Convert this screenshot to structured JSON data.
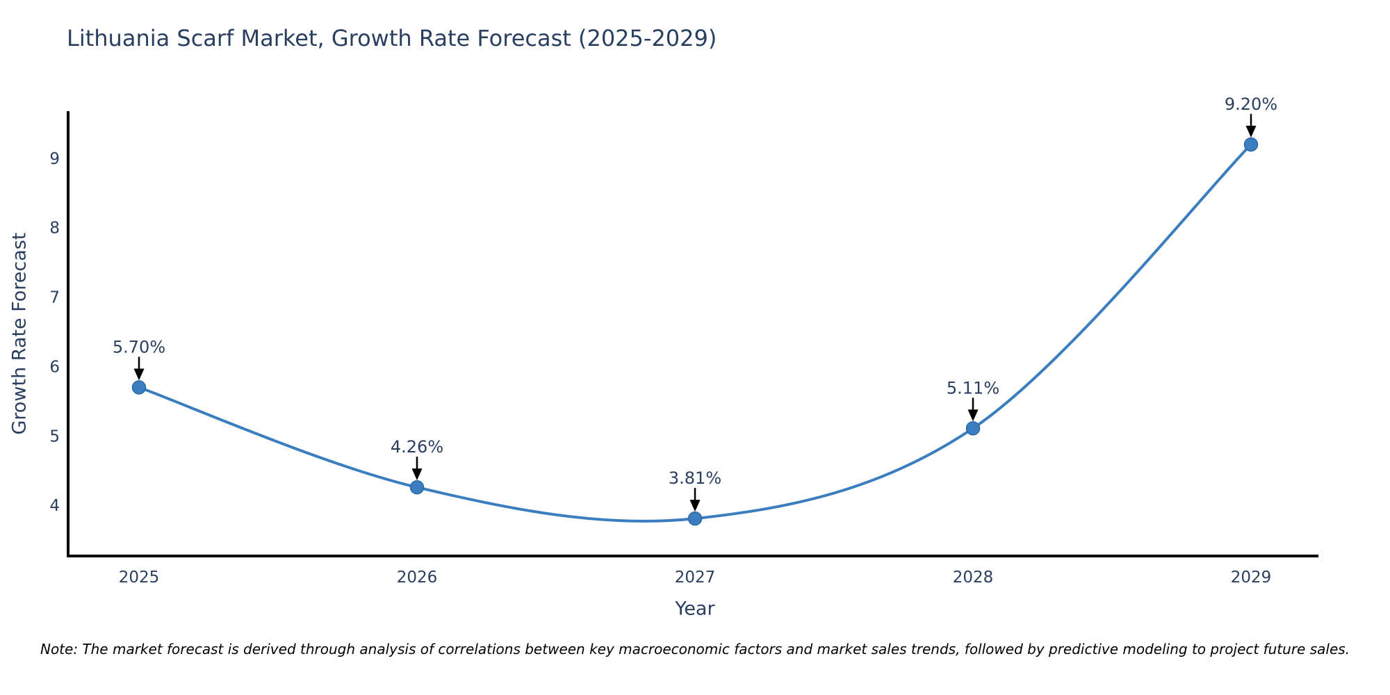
{
  "page": {
    "note": "Note: The market forecast is derived through analysis of correlations between key macroeconomic factors and market sales trends, followed by predictive modeling to project future sales."
  },
  "chart_data": {
    "type": "line",
    "title": "Lithuania Scarf Market, Growth Rate Forecast (2025-2029)",
    "xlabel": "Year",
    "ylabel": "Growth Rate Forecast",
    "categories": [
      "2025",
      "2026",
      "2027",
      "2028",
      "2029"
    ],
    "series": [
      {
        "name": "Growth Rate Forecast",
        "values": [
          5.7,
          4.26,
          3.81,
          5.11,
          9.2
        ],
        "point_labels": [
          "5.70%",
          "4.26%",
          "3.81%",
          "5.11%",
          "9.20%"
        ]
      }
    ],
    "line_shape": "spline",
    "y_ticks": [
      4,
      5,
      6,
      7,
      8,
      9
    ],
    "ylim": [
      3.27,
      10.03
    ],
    "grid": false,
    "legend_position": "none",
    "annotations_style": "value-above-with-down-arrow",
    "colors": {
      "line": "#3a7ebf",
      "marker": "#3a7ebf",
      "marker_edge": "#2a6aa5",
      "axis_line": "#000000",
      "text": "#2a3f5f",
      "arrow": "#000000",
      "note": "#000000",
      "background": "#ffffff"
    }
  }
}
